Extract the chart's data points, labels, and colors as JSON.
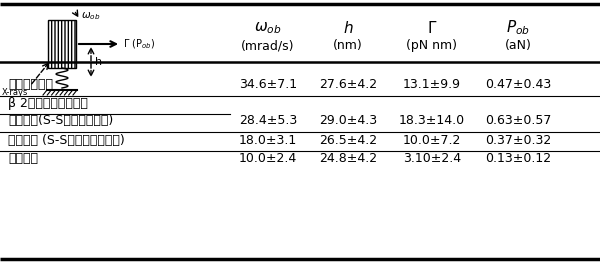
{
  "col_headers": [
    "ω₀b",
    "h",
    "Γ",
    "P₀b"
  ],
  "col_subheaders": [
    "(mrad/s)",
    "(nm)",
    "(pN nm)",
    "(aN)"
  ],
  "rows": [
    {
      "label": "アクチン繊維",
      "values": [
        "34.6±7.1",
        "27.6±4.2",
        "13.1±9.9",
        "0.47±0.43"
      ],
      "section_header": false
    },
    {
      "label": "β 2ミクログラブリン",
      "values": [
        "",
        "",
        "",
        ""
      ],
      "section_header": true
    },
    {
      "label": "変性状態(S-S結合を切った)",
      "values": [
        "28.4±5.3",
        "29.0±4.3",
        "18.3±14.0",
        "0.63±0.57"
      ],
      "section_header": false
    },
    {
      "label": "変性状態 (S-S結合がそのまま)",
      "values": [
        "18.0±3.1",
        "26.5±4.2",
        "10.0±7.2",
        "0.37±0.32"
      ],
      "section_header": false
    },
    {
      "label": "自然状態",
      "values": [
        "10.0±2.4",
        "24.8±4.2",
        "3.10±2.4",
        "0.13±0.12"
      ],
      "section_header": false
    }
  ],
  "bg_color": "#ffffff",
  "text_color": "#000000",
  "line_color": "#000000"
}
